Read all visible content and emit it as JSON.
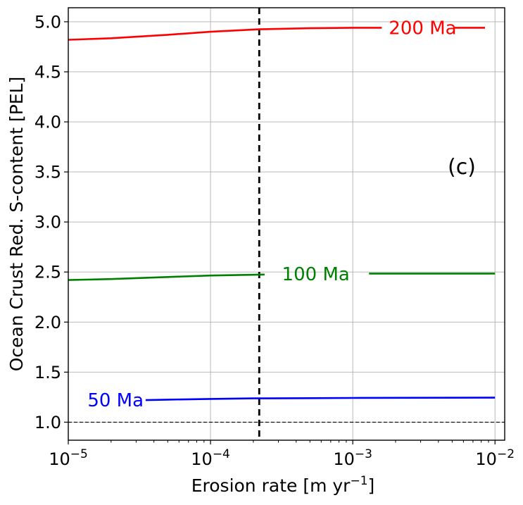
{
  "chart_data": {
    "type": "line",
    "title": "",
    "panel_label": "(c)",
    "xlabel": "Erosion rate [m yr",
    "xlabel_sup": "−1",
    "xlabel_end": "]",
    "ylabel": "Ocean Crust Red. S-content [PEL]",
    "xscale": "log",
    "xlim": [
      1e-05,
      0.0117
    ],
    "ylim": [
      0.82,
      5.14
    ],
    "x_ticks": [
      {
        "value": 1e-05,
        "base": "10",
        "exp": "−5"
      },
      {
        "value": 0.0001,
        "base": "10",
        "exp": "−4"
      },
      {
        "value": 0.001,
        "base": "10",
        "exp": "−3"
      },
      {
        "value": 0.01,
        "base": "10",
        "exp": "−2"
      }
    ],
    "y_ticks": [
      "1.0",
      "1.5",
      "2.0",
      "2.5",
      "3.0",
      "3.5",
      "4.0",
      "4.5",
      "5.0"
    ],
    "grid": true,
    "reference_lines": [
      {
        "orientation": "horizontal",
        "value": 1.0,
        "style": "dashed-thin",
        "color": "#000000"
      },
      {
        "orientation": "vertical",
        "value": 0.00022,
        "style": "dashed-thick",
        "color": "#000000"
      }
    ],
    "series": [
      {
        "name": "200 Ma",
        "color": "#ff0000",
        "label_at": [
          0.0031,
          4.94
        ],
        "x": [
          1e-05,
          2e-05,
          5e-05,
          0.0001,
          0.00022,
          0.0005,
          0.001,
          0.0016
        ],
        "y": [
          4.82,
          4.835,
          4.87,
          4.9,
          4.925,
          4.935,
          4.94,
          4.94
        ],
        "x2": [
          0.0052,
          0.0085
        ],
        "y2": [
          4.94,
          4.94
        ]
      },
      {
        "name": "100 Ma",
        "color": "#008000",
        "label_at": [
          0.00055,
          2.48
        ],
        "x": [
          1e-05,
          2e-05,
          5e-05,
          0.0001,
          0.00024
        ],
        "y": [
          2.42,
          2.43,
          2.45,
          2.465,
          2.475
        ],
        "x2": [
          0.0013,
          0.01
        ],
        "y2": [
          2.485,
          2.485
        ]
      },
      {
        "name": "50 Ma",
        "color": "#0000ff",
        "label_at": [
          2.15e-05,
          1.22
        ],
        "x": [
          3.5e-05,
          5e-05,
          0.0001,
          0.0002,
          0.0005,
          0.001,
          0.01
        ],
        "y": [
          1.22,
          1.225,
          1.232,
          1.238,
          1.24,
          1.242,
          1.245
        ]
      }
    ]
  }
}
